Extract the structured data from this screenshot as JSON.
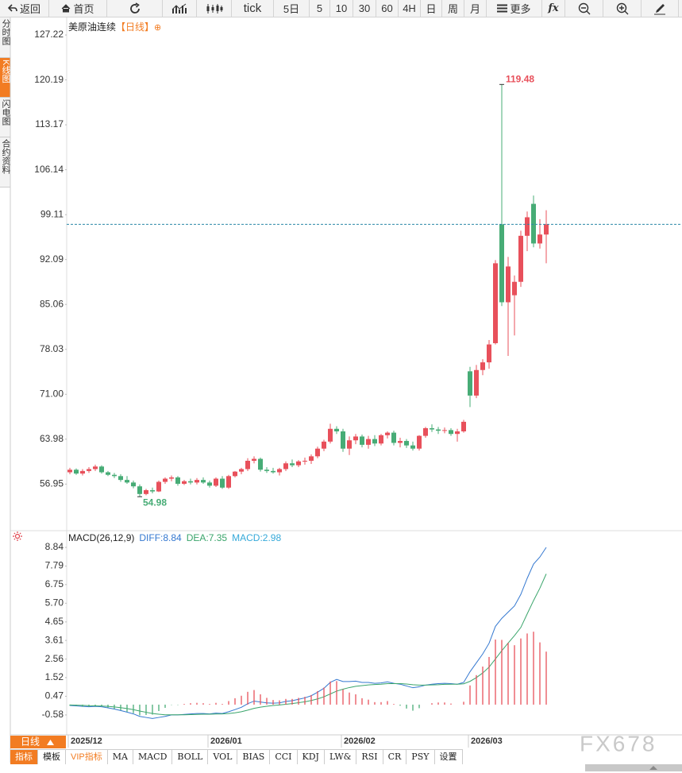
{
  "toolbar": [
    "返回",
    "首页",
    "tick",
    "5日",
    "5",
    "10",
    "30",
    "60",
    "4H",
    "日",
    "周",
    "月",
    "更多",
    "fx"
  ],
  "sidebar": [
    "分时图",
    "K线图",
    "闪电图",
    "合约资料"
  ],
  "footer": {
    "period": "日线",
    "tabs": [
      "指标",
      "模板",
      "VIP指标",
      "MA",
      "MACD",
      "BOLL",
      "VOL",
      "BIAS",
      "CCI",
      "KDJ",
      "LW&",
      "RSI",
      "CR",
      "PSY",
      "设置"
    ],
    "watermark": "FX678"
  },
  "chart_data": [
    {
      "type": "candlestick",
      "title": "美原油连续",
      "subtitle": "【日线】",
      "up_color": "#e8505b",
      "down_color": "#47ac76",
      "price_line_color": "#2a87a8",
      "categories": [
        "2025/12",
        null,
        null,
        null,
        null,
        null,
        null,
        null,
        null,
        null,
        null,
        null,
        null,
        null,
        null,
        null,
        null,
        null,
        null,
        null,
        null,
        null,
        "2026/01",
        null,
        null,
        null,
        null,
        null,
        null,
        null,
        null,
        null,
        null,
        null,
        null,
        null,
        null,
        null,
        null,
        null,
        null,
        null,
        null,
        "2026/02",
        null,
        null,
        null,
        null,
        null,
        null,
        null,
        null,
        null,
        null,
        null,
        null,
        null,
        null,
        null,
        null,
        null,
        null,
        null,
        "2026/03",
        null,
        null,
        null,
        null,
        null,
        null,
        null,
        null,
        null,
        null,
        null,
        null
      ],
      "open": [
        58.8,
        59.2,
        58.6,
        59.0,
        59.3,
        59.7,
        58.8,
        58.4,
        58.2,
        57.6,
        57.2,
        56.6,
        55.4,
        56.0,
        55.8,
        57.3,
        57.8,
        58.0,
        57.0,
        57.4,
        57.2,
        57.6,
        57.2,
        56.7,
        57.8,
        56.4,
        58.2,
        58.9,
        59.3,
        60.6,
        60.9,
        59.2,
        59.0,
        58.8,
        59.3,
        60.2,
        59.9,
        60.5,
        60.6,
        61.3,
        62.5,
        63.6,
        65.6,
        65.2,
        62.5,
        63.8,
        64.4,
        63.1,
        64.0,
        63.3,
        64.6,
        65.0,
        63.4,
        63.7,
        63.0,
        62.5,
        64.5,
        65.7,
        65.5,
        65.3,
        65.4,
        64.8,
        65.2,
        74.6,
        70.8,
        74.8,
        76.0,
        79.0,
        97.6,
        85.4,
        86.5,
        88.6,
        95.8,
        100.8,
        94.6,
        96.0
      ],
      "high": [
        59.5,
        59.4,
        59.3,
        59.6,
        60.0,
        59.9,
        59.0,
        58.7,
        58.5,
        58.2,
        57.5,
        56.9,
        56.2,
        56.4,
        57.5,
        58.0,
        58.3,
        58.2,
        57.6,
        57.8,
        57.9,
        58.0,
        57.5,
        58.0,
        58.2,
        58.4,
        59.0,
        59.5,
        61.0,
        61.3,
        61.1,
        59.6,
        59.5,
        59.5,
        60.5,
        60.8,
        60.7,
        61.1,
        61.6,
        62.8,
        63.9,
        66.4,
        66.0,
        65.6,
        64.4,
        64.8,
        64.7,
        64.5,
        64.6,
        64.8,
        65.2,
        65.3,
        64.2,
        64.0,
        63.6,
        64.6,
        65.9,
        66.3,
        65.9,
        65.8,
        65.7,
        65.6,
        67.0,
        75.3,
        75.6,
        76.5,
        79.5,
        92.0,
        119.48,
        92.5,
        89.6,
        96.6,
        99.6,
        102.1,
        98.4,
        99.8
      ],
      "low": [
        58.5,
        58.4,
        58.3,
        58.7,
        59.0,
        58.6,
        58.2,
        57.9,
        57.3,
        57.0,
        56.3,
        54.98,
        55.2,
        55.5,
        55.7,
        57.0,
        57.4,
        56.7,
        56.8,
        56.9,
        56.9,
        57.0,
        56.4,
        56.5,
        56.2,
        56.2,
        58.0,
        58.5,
        59.0,
        60.2,
        58.9,
        58.7,
        58.6,
        58.3,
        59.0,
        59.6,
        59.6,
        60.0,
        60.1,
        61.0,
        62.1,
        63.3,
        64.8,
        62.0,
        61.5,
        63.2,
        62.7,
        62.5,
        62.9,
        63.0,
        64.1,
        63.0,
        62.7,
        62.6,
        62.2,
        62.2,
        64.2,
        65.1,
        64.8,
        64.9,
        64.5,
        63.6,
        65.0,
        69.0,
        70.4,
        74.0,
        75.0,
        78.8,
        84.8,
        77.0,
        80.2,
        87.8,
        93.4,
        94.0,
        93.8,
        91.5
      ],
      "close": [
        59.2,
        58.6,
        59.0,
        59.3,
        59.7,
        58.8,
        58.4,
        58.2,
        57.6,
        57.2,
        56.6,
        55.4,
        56.0,
        55.8,
        57.3,
        57.8,
        58.0,
        57.0,
        57.4,
        57.2,
        57.6,
        57.2,
        56.7,
        57.8,
        56.4,
        58.2,
        58.9,
        59.3,
        60.6,
        60.9,
        59.2,
        59.0,
        58.8,
        59.3,
        60.2,
        59.9,
        60.5,
        60.6,
        61.3,
        62.5,
        63.6,
        65.6,
        65.2,
        62.5,
        63.8,
        64.4,
        63.1,
        64.0,
        63.3,
        64.6,
        65.0,
        63.4,
        63.7,
        63.0,
        62.5,
        64.5,
        65.7,
        65.5,
        65.3,
        65.4,
        64.8,
        65.2,
        66.7,
        70.8,
        74.8,
        76.0,
        78.8,
        91.5,
        85.4,
        91.0,
        88.6,
        95.8,
        98.7,
        94.6,
        96.0,
        97.6
      ],
      "ylim": [
        49.66,
        129.96
      ],
      "yticks": [
        127.22,
        120.19,
        113.17,
        106.14,
        99.11,
        92.09,
        85.06,
        78.03,
        {
          "value": 71,
          "label": "71.00"
        },
        63.98,
        56.95
      ]
    },
    {
      "type": "macd",
      "title": "MACD(26,12,9)",
      "up_color": "#e8505b",
      "down_color": "#47ac76",
      "series": [
        {
          "name": "DIFF:8.84",
          "type": "line",
          "color": "#3478d0",
          "values": [
            -0.05,
            -0.07,
            -0.1,
            -0.12,
            -0.1,
            -0.12,
            -0.18,
            -0.25,
            -0.33,
            -0.42,
            -0.52,
            -0.66,
            -0.72,
            -0.78,
            -0.72,
            -0.66,
            -0.58,
            -0.58,
            -0.55,
            -0.52,
            -0.5,
            -0.5,
            -0.52,
            -0.48,
            -0.5,
            -0.4,
            -0.28,
            -0.15,
            0.05,
            0.2,
            0.15,
            0.1,
            0.08,
            0.1,
            0.18,
            0.22,
            0.3,
            0.38,
            0.5,
            0.7,
            0.92,
            1.25,
            1.42,
            1.3,
            1.3,
            1.32,
            1.25,
            1.25,
            1.2,
            1.22,
            1.28,
            1.2,
            1.15,
            1.05,
            0.95,
            1.0,
            1.1,
            1.15,
            1.18,
            1.2,
            1.18,
            1.15,
            1.25,
            1.85,
            2.35,
            2.85,
            3.45,
            4.4,
            4.85,
            5.2,
            5.55,
            6.2,
            7.1,
            7.9,
            8.3,
            8.84
          ]
        },
        {
          "name": "DEA:7.35",
          "type": "line",
          "color": "#3aa56b",
          "values": [
            -0.02,
            -0.03,
            -0.04,
            -0.06,
            -0.07,
            -0.08,
            -0.1,
            -0.13,
            -0.17,
            -0.22,
            -0.28,
            -0.36,
            -0.43,
            -0.5,
            -0.54,
            -0.57,
            -0.57,
            -0.57,
            -0.57,
            -0.56,
            -0.55,
            -0.54,
            -0.54,
            -0.53,
            -0.52,
            -0.5,
            -0.46,
            -0.4,
            -0.31,
            -0.21,
            -0.14,
            -0.09,
            -0.05,
            -0.02,
            0.02,
            0.06,
            0.11,
            0.16,
            0.23,
            0.32,
            0.44,
            0.6,
            0.76,
            0.87,
            0.96,
            1.03,
            1.07,
            1.11,
            1.13,
            1.15,
            1.18,
            1.18,
            1.18,
            1.16,
            1.12,
            1.1,
            1.1,
            1.11,
            1.12,
            1.14,
            1.15,
            1.15,
            1.17,
            1.31,
            1.52,
            1.78,
            2.11,
            2.57,
            3.03,
            3.46,
            3.88,
            4.34,
            5.1,
            5.85,
            6.55,
            7.35
          ]
        },
        {
          "name": "MACD:2.98",
          "type": "bar",
          "color": "#35a9d9",
          "values": [
            -0.06,
            -0.08,
            -0.12,
            -0.12,
            -0.06,
            -0.08,
            -0.16,
            -0.24,
            -0.32,
            -0.4,
            -0.48,
            -0.6,
            -0.58,
            -0.56,
            -0.36,
            -0.18,
            -0.02,
            -0.02,
            0.04,
            0.08,
            0.1,
            0.08,
            0.04,
            0.1,
            0.04,
            0.2,
            0.36,
            0.5,
            0.72,
            0.82,
            0.58,
            0.38,
            0.26,
            0.24,
            0.32,
            0.32,
            0.38,
            0.44,
            0.54,
            0.76,
            0.96,
            1.3,
            1.32,
            0.86,
            0.68,
            0.58,
            0.36,
            0.28,
            0.14,
            0.14,
            0.2,
            0.04,
            -0.06,
            -0.22,
            -0.34,
            -0.2,
            0.0,
            0.08,
            0.12,
            0.12,
            0.06,
            0.0,
            0.16,
            1.08,
            1.66,
            2.14,
            2.68,
            3.66,
            3.64,
            3.48,
            3.34,
            3.72,
            4.0,
            4.1,
            3.5,
            2.98
          ]
        }
      ],
      "ylim": [
        -1.7,
        9.69
      ],
      "yticks": [
        8.84,
        7.79,
        6.75,
        {
          "value": 5.7,
          "label": "5.70"
        },
        4.65,
        3.61,
        2.56,
        1.52,
        0.47,
        -0.58
      ]
    }
  ]
}
